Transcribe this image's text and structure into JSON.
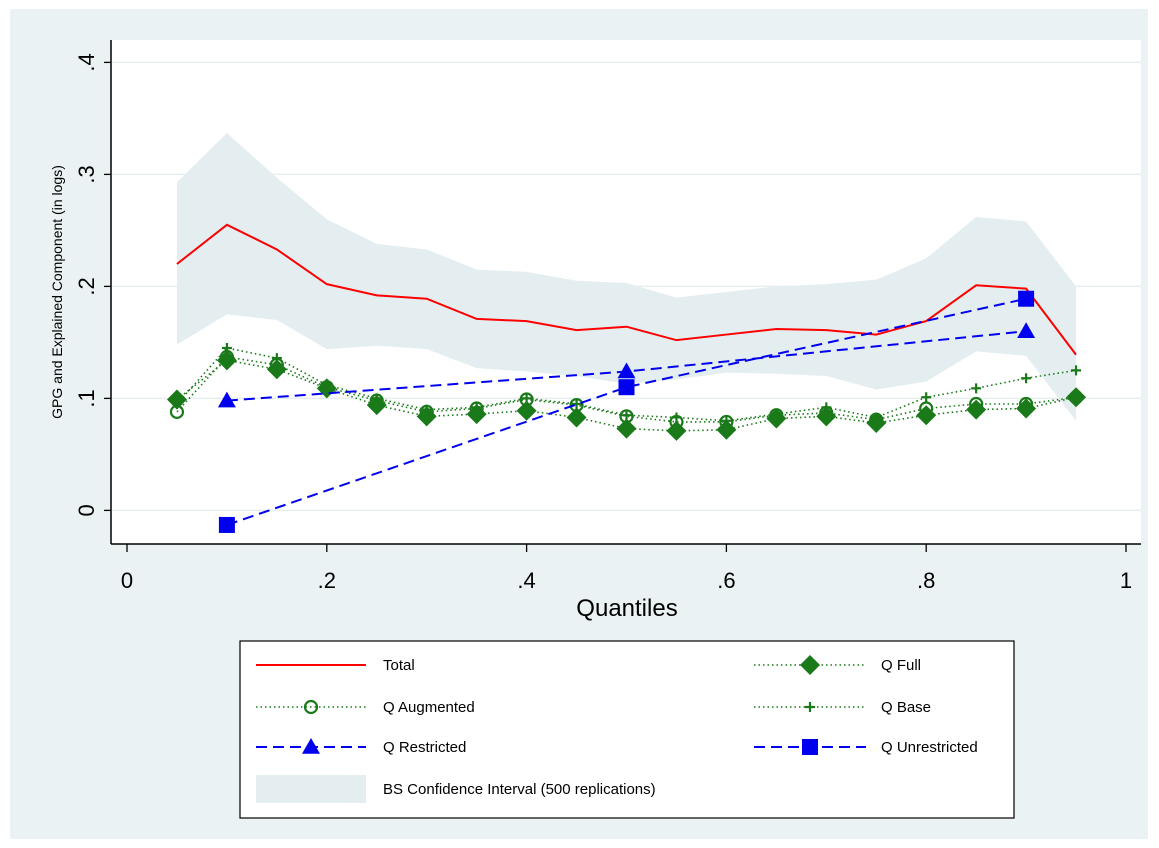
{
  "chart_data": {
    "type": "line",
    "ylabel": "GPG and Explained Component (in logs)",
    "xlabel": "Quantiles",
    "xlim": [
      0,
      1
    ],
    "ylim": [
      -0.03,
      0.42
    ],
    "xticks": [
      0,
      0.2,
      0.4,
      0.6,
      0.8,
      1
    ],
    "xtick_labels": [
      "0",
      ".2",
      ".4",
      ".6",
      ".8",
      "1"
    ],
    "yticks": [
      0,
      0.1,
      0.2,
      0.3,
      0.4
    ],
    "ytick_labels": [
      "0",
      ".1",
      ".2",
      ".3",
      ".4"
    ],
    "grid": "horizontal",
    "legend_position": "bottom",
    "confidence_band": {
      "name": "BS Confidence Interval (500 replications)",
      "color": "#e4eef0",
      "x": [
        0.05,
        0.1,
        0.15,
        0.2,
        0.25,
        0.3,
        0.35,
        0.4,
        0.45,
        0.5,
        0.55,
        0.6,
        0.65,
        0.7,
        0.75,
        0.8,
        0.85,
        0.9,
        0.95
      ],
      "upper": [
        0.293,
        0.337,
        0.297,
        0.26,
        0.238,
        0.233,
        0.215,
        0.213,
        0.205,
        0.203,
        0.19,
        0.195,
        0.2,
        0.202,
        0.206,
        0.225,
        0.262,
        0.258,
        0.2
      ],
      "lower": [
        0.148,
        0.175,
        0.17,
        0.144,
        0.147,
        0.144,
        0.127,
        0.124,
        0.12,
        0.113,
        0.117,
        0.123,
        0.122,
        0.12,
        0.108,
        0.115,
        0.142,
        0.138,
        0.08
      ]
    },
    "series": [
      {
        "name": "Total",
        "color": "#ff0000",
        "line": "solid",
        "marker": "none",
        "x": [
          0.05,
          0.1,
          0.15,
          0.2,
          0.25,
          0.3,
          0.35,
          0.4,
          0.45,
          0.5,
          0.55,
          0.6,
          0.65,
          0.7,
          0.75,
          0.8,
          0.85,
          0.9,
          0.95
        ],
        "values": [
          0.22,
          0.255,
          0.233,
          0.202,
          0.192,
          0.189,
          0.171,
          0.169,
          0.161,
          0.164,
          0.152,
          0.157,
          0.162,
          0.161,
          0.157,
          0.169,
          0.201,
          0.198,
          0.139
        ]
      },
      {
        "name": "Q Full",
        "color": "#1a7a1a",
        "line": "dotted",
        "marker": "diamond",
        "x": [
          0.05,
          0.1,
          0.15,
          0.2,
          0.25,
          0.3,
          0.35,
          0.4,
          0.45,
          0.5,
          0.55,
          0.6,
          0.65,
          0.7,
          0.75,
          0.8,
          0.85,
          0.9,
          0.95
        ],
        "values": [
          0.099,
          0.134,
          0.126,
          0.109,
          0.094,
          0.084,
          0.086,
          0.089,
          0.083,
          0.073,
          0.071,
          0.072,
          0.082,
          0.084,
          0.078,
          0.085,
          0.09,
          0.091,
          0.101
        ]
      },
      {
        "name": "Q Augmented",
        "color": "#1a7a1a",
        "line": "dotted",
        "marker": "circle-open",
        "x": [
          0.05,
          0.1,
          0.15,
          0.2,
          0.25,
          0.3,
          0.35,
          0.4,
          0.45,
          0.5,
          0.55,
          0.6,
          0.65,
          0.7,
          0.75,
          0.8,
          0.85,
          0.9,
          0.95
        ],
        "values": [
          0.088,
          0.137,
          0.13,
          0.11,
          0.098,
          0.088,
          0.091,
          0.099,
          0.094,
          0.084,
          0.079,
          0.079,
          0.085,
          0.087,
          0.081,
          0.091,
          0.095,
          0.095,
          0.101
        ]
      },
      {
        "name": "Q Base",
        "color": "#1a7a1a",
        "line": "dotted",
        "marker": "plus",
        "x": [
          0.05,
          0.1,
          0.15,
          0.2,
          0.25,
          0.3,
          0.35,
          0.4,
          0.45,
          0.5,
          0.55,
          0.6,
          0.65,
          0.7,
          0.75,
          0.8,
          0.85,
          0.9,
          0.95
        ],
        "values": [
          0.095,
          0.145,
          0.136,
          0.112,
          0.1,
          0.09,
          0.092,
          0.1,
          0.095,
          0.085,
          0.083,
          0.08,
          0.086,
          0.092,
          0.083,
          0.101,
          0.109,
          0.118,
          0.125
        ]
      },
      {
        "name": "Q Restricted",
        "color": "#0000ee",
        "line": "dashed",
        "marker": "triangle",
        "x": [
          0.1,
          0.5,
          0.9
        ],
        "values": [
          0.098,
          0.124,
          0.16
        ]
      },
      {
        "name": "Q Unrestricted",
        "color": "#0000ee",
        "line": "dashed",
        "marker": "square",
        "x": [
          0.1,
          0.5,
          0.9
        ],
        "values": [
          -0.013,
          0.11,
          0.189
        ]
      }
    ]
  }
}
